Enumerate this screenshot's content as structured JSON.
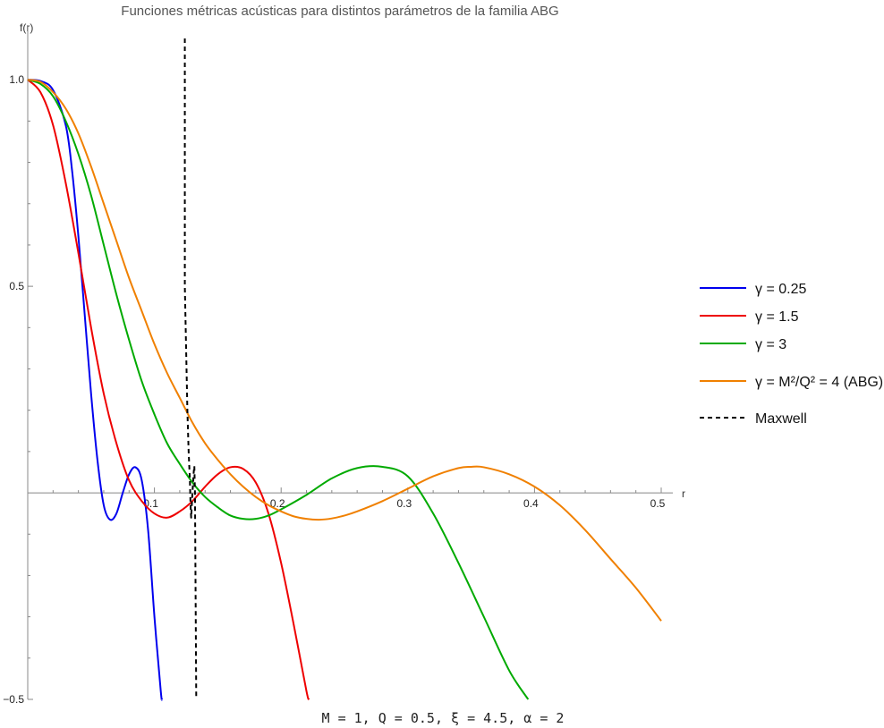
{
  "chart_data": {
    "type": "line",
    "title": "Funciones métricas acústicas para distintos parámetros de la familia ABG",
    "xlabel": "r",
    "ylabel": "f(r)",
    "xlim": [
      0,
      0.5
    ],
    "ylim": [
      -0.5,
      1.1
    ],
    "xticks": [
      "0.1",
      "0.2",
      "0.3",
      "0.4",
      "0.5"
    ],
    "yticks": [
      "1.0",
      "0.5",
      "-0.5"
    ],
    "annotation": "M = 1, Q = 0.5, ξ = 4.5, α = 2",
    "legend_position": "right",
    "series": [
      {
        "name": "γ = 0.25",
        "color": "#0000ee",
        "dash": "solid",
        "x": [
          0,
          0.01,
          0.02,
          0.03,
          0.035,
          0.04,
          0.045,
          0.05,
          0.055,
          0.06,
          0.065,
          0.07,
          0.075,
          0.08,
          0.085,
          0.09,
          0.095,
          0.1,
          0.105,
          0.106
        ],
        "y": [
          1.0,
          0.997,
          0.975,
          0.89,
          0.78,
          0.62,
          0.43,
          0.24,
          0.08,
          -0.03,
          -0.065,
          -0.05,
          0.0,
          0.045,
          0.062,
          0.03,
          -0.09,
          -0.3,
          -0.48,
          -0.5
        ]
      },
      {
        "name": "γ = 1.5",
        "color": "#ee0000",
        "dash": "solid",
        "x": [
          0,
          0.01,
          0.02,
          0.03,
          0.04,
          0.05,
          0.06,
          0.07,
          0.08,
          0.09,
          0.1,
          0.11,
          0.12,
          0.13,
          0.14,
          0.15,
          0.16,
          0.17,
          0.18,
          0.19,
          0.2,
          0.21,
          0.22,
          0.222
        ],
        "y": [
          1.0,
          0.97,
          0.89,
          0.75,
          0.58,
          0.4,
          0.24,
          0.12,
          0.03,
          -0.02,
          -0.05,
          -0.06,
          -0.045,
          -0.02,
          0.015,
          0.045,
          0.062,
          0.058,
          0.025,
          -0.05,
          -0.17,
          -0.32,
          -0.48,
          -0.5
        ]
      },
      {
        "name": "γ = 3",
        "color": "#00aa00",
        "dash": "solid",
        "x": [
          0,
          0.01,
          0.02,
          0.03,
          0.04,
          0.05,
          0.06,
          0.07,
          0.08,
          0.09,
          0.1,
          0.11,
          0.12,
          0.13,
          0.14,
          0.15,
          0.16,
          0.17,
          0.18,
          0.19,
          0.2,
          0.22,
          0.24,
          0.26,
          0.28,
          0.3,
          0.32,
          0.34,
          0.36,
          0.38,
          0.395
        ],
        "y": [
          1.0,
          0.99,
          0.96,
          0.9,
          0.82,
          0.72,
          0.6,
          0.48,
          0.37,
          0.27,
          0.19,
          0.12,
          0.07,
          0.025,
          -0.01,
          -0.035,
          -0.055,
          -0.063,
          -0.063,
          -0.055,
          -0.04,
          -0.005,
          0.035,
          0.06,
          0.063,
          0.04,
          -0.05,
          -0.17,
          -0.3,
          -0.43,
          -0.5
        ]
      },
      {
        "name": "γ = M²/Q² = 4 (ABG)",
        "color": "#f08000",
        "dash": "solid",
        "x": [
          0,
          0.01,
          0.02,
          0.03,
          0.04,
          0.05,
          0.06,
          0.07,
          0.08,
          0.09,
          0.1,
          0.11,
          0.12,
          0.13,
          0.14,
          0.15,
          0.16,
          0.17,
          0.18,
          0.19,
          0.2,
          0.21,
          0.22,
          0.23,
          0.24,
          0.25,
          0.26,
          0.28,
          0.3,
          0.32,
          0.34,
          0.35,
          0.36,
          0.38,
          0.4,
          0.42,
          0.44,
          0.46,
          0.48,
          0.5
        ],
        "y": [
          1.0,
          0.995,
          0.97,
          0.93,
          0.87,
          0.79,
          0.7,
          0.61,
          0.52,
          0.44,
          0.36,
          0.29,
          0.23,
          0.17,
          0.12,
          0.08,
          0.045,
          0.015,
          -0.01,
          -0.03,
          -0.045,
          -0.057,
          -0.063,
          -0.065,
          -0.062,
          -0.055,
          -0.045,
          -0.02,
          0.01,
          0.04,
          0.06,
          0.063,
          0.062,
          0.045,
          0.015,
          -0.03,
          -0.09,
          -0.16,
          -0.23,
          -0.31
        ]
      },
      {
        "name": "Maxwell",
        "color": "#000000",
        "dash": "dashed",
        "x": [
          0.124,
          0.124,
          0.126,
          0.127,
          0.128,
          0.1285,
          0.129,
          0.13,
          0.131,
          0.1315,
          0.132,
          0.133
        ],
        "y": [
          1.1,
          0.5,
          0.2,
          0.1,
          0.03,
          -0.03,
          -0.06,
          0.0,
          0.05,
          0.065,
          0.0,
          -0.5
        ]
      }
    ]
  }
}
